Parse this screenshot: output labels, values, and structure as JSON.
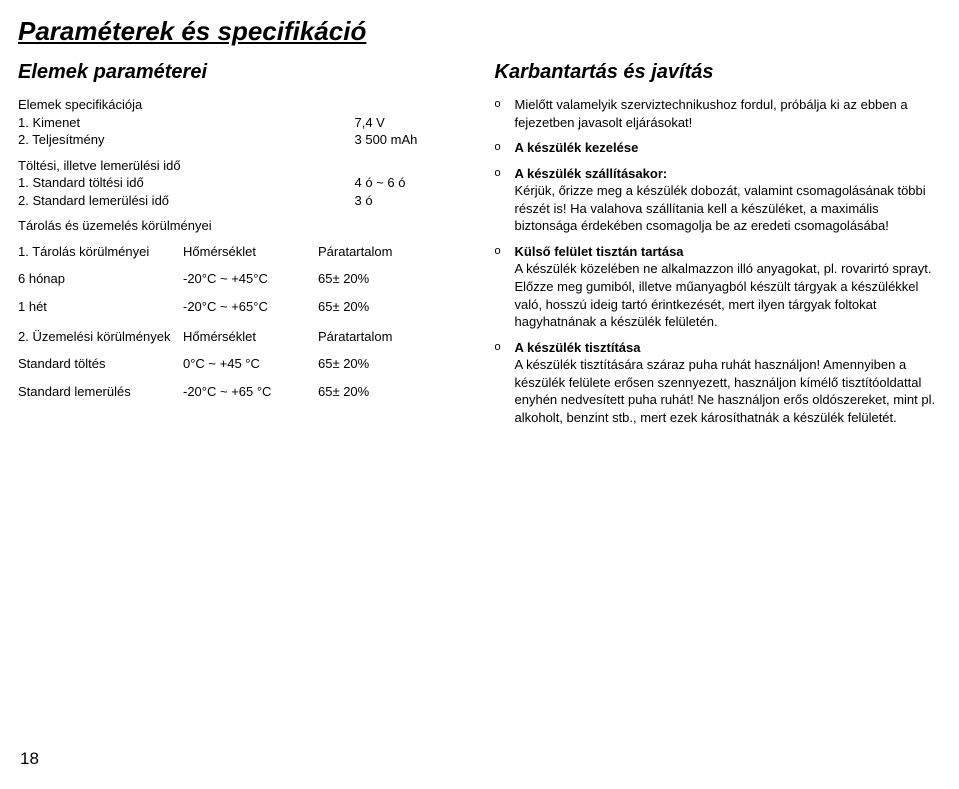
{
  "title": "Paraméterek és specifikáció",
  "left": {
    "subtitle": "Elemek paraméterei",
    "specHeading": "Elemek specifikációja",
    "spec": [
      {
        "n": "1. Kimenet",
        "v": "7,4 V"
      },
      {
        "n": "2. Teljesítmény",
        "v": "3 500 mAh"
      }
    ],
    "chargeHeading": "Töltési, illetve lemerülési idő",
    "charge": [
      {
        "n": "1. Standard töltési idő",
        "v": "4 ó ~ 6 ó"
      },
      {
        "n": "2. Standard lemerülési idő",
        "v": "3 ó"
      }
    ],
    "storageOpHeading": "Tárolás és üzemelés körülményei",
    "storageTitle": "1. Tárolás körülményei",
    "storageCol2": "Hőmérséklet",
    "storageCol3": "Páratartalom",
    "storageRows": [
      {
        "c1": "6 hónap",
        "c2": "-20°C ~ +45°C",
        "c3": "65± 20%"
      },
      {
        "c1": "1 hét",
        "c2": "-20°C  ~ +65°C",
        "c3": "65± 20%"
      }
    ],
    "opTitle": "2. Üzemelési körülmények",
    "opCol2": "Hőmérséklet",
    "opCol3": "Páratartalom",
    "opRows": [
      {
        "c1": "Standard töltés",
        "c2": "0°C ~ +45 °C",
        "c3": "65± 20%"
      },
      {
        "c1": "Standard lemerülés",
        "c2": "-20°C ~ +65 °C",
        "c3": "65± 20%"
      }
    ]
  },
  "right": {
    "subtitle": "Karbantartás és javítás",
    "items": [
      {
        "bold": null,
        "text": "Mielőtt valamelyik szerviztechnikushoz fordul, próbálja ki az ebben a fejezetben javasolt eljárásokat!"
      },
      {
        "bold": "A készülék kezelése",
        "text": ""
      },
      {
        "bold": "A készülék szállításakor:",
        "text": "Kérjük, őrizze meg a készülék dobozát, valamint csomagolásának többi részét is! Ha valahova szállítania kell a készüléket, a maximális biztonsága érdekében csomagolja be az eredeti csomagolásába!"
      },
      {
        "bold": "Külső felület tisztán tartása",
        "text": "A készülék közelében ne alkalmazzon illó anyagokat, pl. rovarirtó sprayt. Előzze meg gumiból, illetve műanyagból készült tárgyak a készülékkel való, hosszú ideig tartó érintkezését, mert ilyen tárgyak foltokat hagyhatnának a készülék felületén."
      },
      {
        "bold": "A készülék tisztítása",
        "text": "A készülék tisztítására száraz puha ruhát használjon! Amennyiben a készülék felülete erősen szennyezett, használjon kímélő tisztítóoldattal enyhén nedvesített puha ruhát! Ne használjon erős oldószereket, mint pl.  alkoholt, benzint stb., mert ezek károsíthatnák a készülék felületét."
      }
    ]
  },
  "pageNumber": "18",
  "bulletGlyph": "o"
}
